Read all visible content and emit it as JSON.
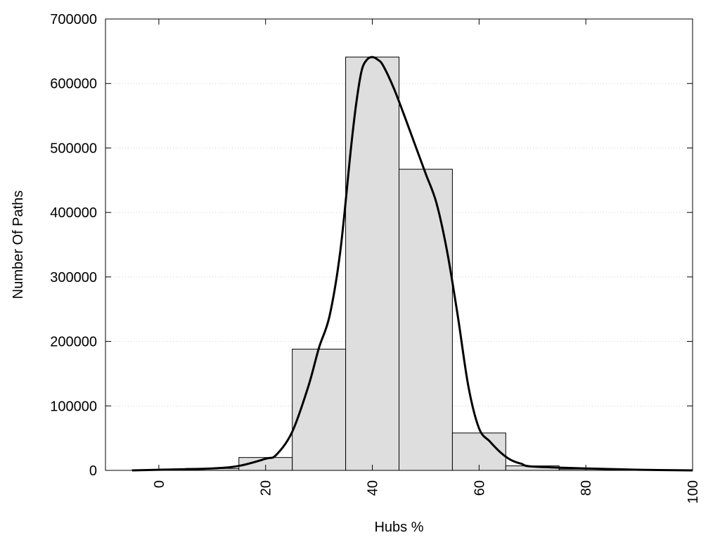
{
  "chart_data": {
    "type": "bar",
    "title": "",
    "xlabel": "Hubs %",
    "ylabel": "Number Of Paths",
    "xlim": [
      -10,
      100
    ],
    "ylim": [
      0,
      700000
    ],
    "x_ticks": [
      "0",
      "20",
      "40",
      "60",
      "80",
      "100"
    ],
    "y_ticks": [
      "0",
      "100000",
      "200000",
      "300000",
      "400000",
      "500000",
      "600000",
      "700000"
    ],
    "grid": "horizontal dotted",
    "bar_color": "#dedede",
    "bins": [
      {
        "x": 0,
        "value": 1000
      },
      {
        "x": 10,
        "value": 3000
      },
      {
        "x": 20,
        "value": 20000
      },
      {
        "x": 30,
        "value": 188000
      },
      {
        "x": 40,
        "value": 641000
      },
      {
        "x": 50,
        "value": 467000
      },
      {
        "x": 60,
        "value": 58000
      },
      {
        "x": 70,
        "value": 7000
      },
      {
        "x": 80,
        "value": 2000
      },
      {
        "x": 90,
        "value": 500
      }
    ],
    "bin_width": 10,
    "curve": {
      "color": "#000000",
      "points": [
        [
          -5,
          0
        ],
        [
          0,
          1000
        ],
        [
          10,
          3000
        ],
        [
          15,
          7000
        ],
        [
          20,
          18000
        ],
        [
          22,
          24000
        ],
        [
          25,
          60000
        ],
        [
          28,
          130000
        ],
        [
          30,
          190000
        ],
        [
          32,
          240000
        ],
        [
          34,
          340000
        ],
        [
          36,
          500000
        ],
        [
          37,
          570000
        ],
        [
          38,
          620000
        ],
        [
          39,
          637000
        ],
        [
          40,
          641000
        ],
        [
          41,
          637000
        ],
        [
          42,
          628000
        ],
        [
          44,
          593000
        ],
        [
          46,
          550000
        ],
        [
          48,
          505000
        ],
        [
          50,
          460000
        ],
        [
          52,
          415000
        ],
        [
          54,
          340000
        ],
        [
          56,
          240000
        ],
        [
          58,
          130000
        ],
        [
          60,
          65000
        ],
        [
          62,
          45000
        ],
        [
          64,
          28000
        ],
        [
          66,
          16000
        ],
        [
          68,
          10000
        ],
        [
          70,
          6000
        ],
        [
          80,
          3000
        ],
        [
          90,
          1000
        ],
        [
          100,
          0
        ]
      ]
    }
  }
}
